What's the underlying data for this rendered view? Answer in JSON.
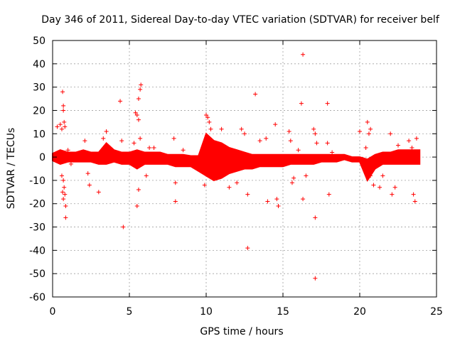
{
  "chart_data": {
    "type": "scatter",
    "title": "Day 346 of 2011, Sidereal Day-to-day VTEC variation (SDTVAR) for receiver belf",
    "xlabel": "GPS time / hours",
    "ylabel": "SDTVAR / TECUs",
    "xlim": [
      0,
      25
    ],
    "ylim": [
      -60,
      50
    ],
    "xticks": [
      0,
      5,
      10,
      15,
      20,
      25
    ],
    "yticks": [
      -60,
      -50,
      -40,
      -30,
      -20,
      -10,
      0,
      10,
      20,
      30,
      40,
      50
    ],
    "grid": true,
    "marker": "+",
    "color": "#ff0000",
    "band": {
      "description": "dense scatter band of per-epoch SDTVAR values (hours, TECU)",
      "x": [
        0,
        0.5,
        1,
        1.5,
        2,
        2.5,
        3,
        3.5,
        4,
        4.5,
        5,
        5.5,
        6,
        6.5,
        7,
        7.5,
        8,
        8.5,
        9,
        9.5,
        10,
        10.5,
        11,
        11.5,
        12,
        12.5,
        13,
        13.5,
        14,
        14.5,
        15,
        15.5,
        16,
        16.5,
        17,
        17.5,
        18,
        18.5,
        19,
        19.5,
        20,
        20.5,
        21,
        21.5,
        22,
        22.5,
        23,
        23.5,
        23.9
      ],
      "upper": [
        1.5,
        3,
        2,
        2,
        3,
        2,
        2,
        6,
        3,
        2,
        2,
        3,
        2,
        2,
        2,
        1,
        1,
        1,
        0.5,
        0.5,
        10,
        7,
        6,
        4,
        3,
        2,
        1,
        1,
        1,
        1,
        1,
        1,
        1,
        1,
        1,
        1,
        1,
        1,
        1,
        0,
        0,
        -1,
        1,
        2,
        2,
        3,
        3,
        3,
        3
      ],
      "lower": [
        -1.5,
        -3,
        -2,
        -2,
        -2,
        -2,
        -3,
        -3,
        -2,
        -3,
        -3,
        -5,
        -3,
        -3,
        -3,
        -3,
        -4,
        -4,
        -4,
        -6,
        -8,
        -10,
        -9,
        -7,
        -6,
        -5,
        -5,
        -4,
        -4,
        -4,
        -4,
        -3,
        -3,
        -3,
        -3,
        -2,
        -2,
        -2,
        -1,
        -2,
        -2,
        -10,
        -5,
        -3,
        -3,
        -3,
        -3,
        -3,
        -3
      ]
    },
    "points": [
      {
        "x": 0.3,
        "y": 13
      },
      {
        "x": 0.5,
        "y": 14
      },
      {
        "x": 0.6,
        "y": 12
      },
      {
        "x": 0.65,
        "y": 28
      },
      {
        "x": 0.7,
        "y": 22
      },
      {
        "x": 0.7,
        "y": 20
      },
      {
        "x": 0.75,
        "y": 15
      },
      {
        "x": 0.8,
        "y": 13
      },
      {
        "x": 0.6,
        "y": -8
      },
      {
        "x": 0.7,
        "y": -10
      },
      {
        "x": 0.75,
        "y": -13
      },
      {
        "x": 0.65,
        "y": -15
      },
      {
        "x": 0.8,
        "y": -16
      },
      {
        "x": 0.7,
        "y": -18
      },
      {
        "x": 0.85,
        "y": -21
      },
      {
        "x": 0.85,
        "y": -26
      },
      {
        "x": 1.0,
        "y": 3
      },
      {
        "x": 1.2,
        "y": -3
      },
      {
        "x": 2.1,
        "y": 7
      },
      {
        "x": 2.3,
        "y": -7
      },
      {
        "x": 2.4,
        "y": -12
      },
      {
        "x": 3.0,
        "y": -15
      },
      {
        "x": 3.5,
        "y": 11
      },
      {
        "x": 3.3,
        "y": 8
      },
      {
        "x": 4.4,
        "y": 24
      },
      {
        "x": 4.5,
        "y": 7
      },
      {
        "x": 4.6,
        "y": -30
      },
      {
        "x": 5.3,
        "y": 6
      },
      {
        "x": 5.4,
        "y": 19
      },
      {
        "x": 5.5,
        "y": 18
      },
      {
        "x": 5.6,
        "y": 25
      },
      {
        "x": 5.7,
        "y": 29
      },
      {
        "x": 5.75,
        "y": 31
      },
      {
        "x": 5.6,
        "y": 16
      },
      {
        "x": 5.7,
        "y": 8
      },
      {
        "x": 5.6,
        "y": -14
      },
      {
        "x": 5.5,
        "y": -21
      },
      {
        "x": 6.1,
        "y": -8
      },
      {
        "x": 6.3,
        "y": 4
      },
      {
        "x": 6.6,
        "y": 4
      },
      {
        "x": 7.9,
        "y": 8
      },
      {
        "x": 8.0,
        "y": -11
      },
      {
        "x": 8.0,
        "y": -19
      },
      {
        "x": 8.5,
        "y": 3
      },
      {
        "x": 9.9,
        "y": -12
      },
      {
        "x": 10.0,
        "y": 18
      },
      {
        "x": 10.1,
        "y": 17
      },
      {
        "x": 10.2,
        "y": 15
      },
      {
        "x": 10.3,
        "y": 12
      },
      {
        "x": 11.0,
        "y": 12
      },
      {
        "x": 11.5,
        "y": -13
      },
      {
        "x": 12.0,
        "y": -11
      },
      {
        "x": 12.3,
        "y": 12
      },
      {
        "x": 12.5,
        "y": 10
      },
      {
        "x": 12.7,
        "y": -16
      },
      {
        "x": 12.7,
        "y": -39
      },
      {
        "x": 13.2,
        "y": 27
      },
      {
        "x": 13.5,
        "y": 7
      },
      {
        "x": 13.9,
        "y": 8
      },
      {
        "x": 14.0,
        "y": -19
      },
      {
        "x": 14.5,
        "y": 14
      },
      {
        "x": 14.6,
        "y": -18
      },
      {
        "x": 14.7,
        "y": -21
      },
      {
        "x": 15.4,
        "y": 11
      },
      {
        "x": 15.5,
        "y": 7
      },
      {
        "x": 15.6,
        "y": -11
      },
      {
        "x": 15.7,
        "y": -9
      },
      {
        "x": 16.2,
        "y": 23
      },
      {
        "x": 16.3,
        "y": 44
      },
      {
        "x": 16.3,
        "y": -18
      },
      {
        "x": 16.0,
        "y": 3
      },
      {
        "x": 16.5,
        "y": -8
      },
      {
        "x": 17.0,
        "y": 12
      },
      {
        "x": 17.1,
        "y": 10
      },
      {
        "x": 17.2,
        "y": 6
      },
      {
        "x": 17.1,
        "y": -26
      },
      {
        "x": 17.1,
        "y": -52
      },
      {
        "x": 17.9,
        "y": 23
      },
      {
        "x": 17.9,
        "y": 6
      },
      {
        "x": 18.0,
        "y": -16
      },
      {
        "x": 18.2,
        "y": 2
      },
      {
        "x": 20.0,
        "y": 11
      },
      {
        "x": 20.5,
        "y": 15
      },
      {
        "x": 20.7,
        "y": 12
      },
      {
        "x": 20.6,
        "y": 10
      },
      {
        "x": 20.4,
        "y": 4
      },
      {
        "x": 20.7,
        "y": -8
      },
      {
        "x": 20.9,
        "y": -12
      },
      {
        "x": 21.3,
        "y": -13
      },
      {
        "x": 21.5,
        "y": -8
      },
      {
        "x": 22.0,
        "y": 10
      },
      {
        "x": 22.1,
        "y": -16
      },
      {
        "x": 22.3,
        "y": -13
      },
      {
        "x": 22.5,
        "y": 5
      },
      {
        "x": 23.2,
        "y": 7
      },
      {
        "x": 23.4,
        "y": 4
      },
      {
        "x": 23.5,
        "y": -16
      },
      {
        "x": 23.6,
        "y": -19
      },
      {
        "x": 23.7,
        "y": 8
      }
    ]
  }
}
